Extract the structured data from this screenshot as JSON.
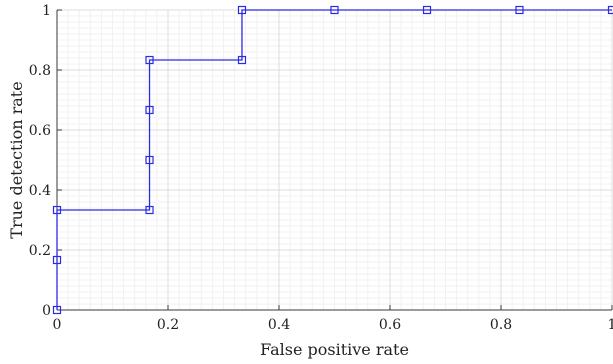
{
  "chart_data": {
    "type": "line",
    "xlabel": "False positive rate",
    "ylabel": "True detection rate",
    "xlim": [
      0,
      1
    ],
    "ylim": [
      0,
      1
    ],
    "xticks": [
      0,
      0.2,
      0.4,
      0.6,
      0.8,
      1
    ],
    "yticks": [
      0,
      0.2,
      0.4,
      0.6,
      0.8,
      1
    ],
    "xtick_labels": [
      "0",
      "0.2",
      "0.4",
      "0.6",
      "0.8",
      "1"
    ],
    "ytick_labels": [
      "0",
      "0.2",
      "0.4",
      "0.6",
      "0.8",
      "1"
    ],
    "grid": true,
    "minor_grid": true,
    "legend": "none",
    "series": [
      {
        "color": "#2b2be6",
        "marker": "square",
        "line_style": "step",
        "x": [
          0,
          0,
          0,
          0.1667,
          0.1667,
          0.1667,
          0.1667,
          0.3333,
          0.3333,
          0.5,
          0.6667,
          0.8333,
          1
        ],
        "y": [
          0,
          0.1667,
          0.3333,
          0.3333,
          0.5,
          0.6667,
          0.8333,
          0.8333,
          1,
          1,
          1,
          1,
          1
        ]
      }
    ]
  }
}
